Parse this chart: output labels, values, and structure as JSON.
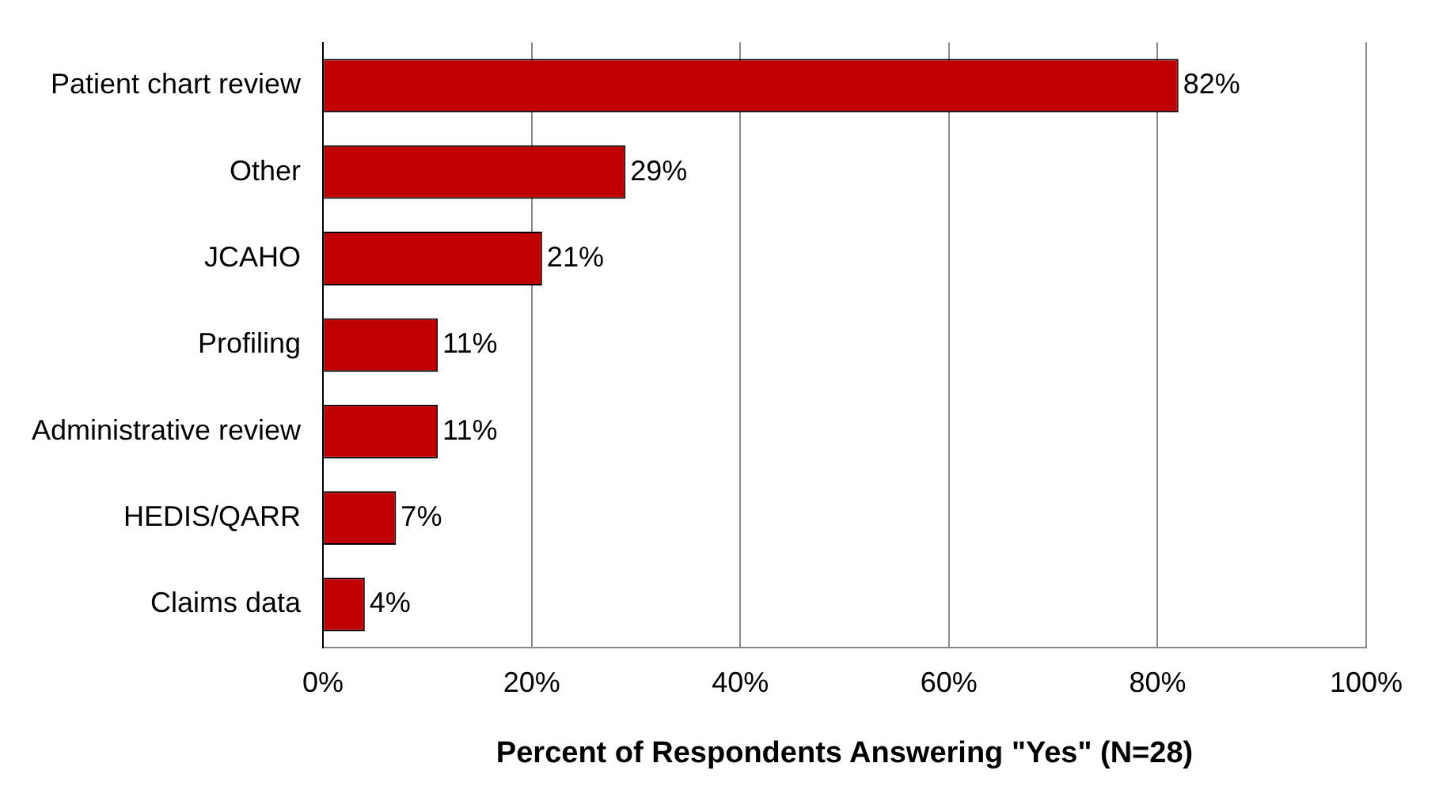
{
  "chart_data": {
    "type": "bar",
    "orientation": "horizontal",
    "xlabel": "Percent of Respondents Answering \"Yes\" (N=28)",
    "categories": [
      "Patient chart review",
      "Other",
      "JCAHO",
      "Profiling",
      "Administrative review",
      "HEDIS/QARR",
      "Claims data"
    ],
    "values": [
      82,
      29,
      21,
      11,
      11,
      7,
      4
    ],
    "value_labels": [
      "82%",
      "29%",
      "21%",
      "11%",
      "11%",
      "7%",
      "4%"
    ],
    "color": "#c00000",
    "xlim": [
      0,
      100
    ],
    "xticks": [
      {
        "value": 0,
        "label": "0%"
      },
      {
        "value": 20,
        "label": "20%"
      },
      {
        "value": 40,
        "label": "40%"
      },
      {
        "value": 60,
        "label": "60%"
      },
      {
        "value": 80,
        "label": "80%"
      },
      {
        "value": 100,
        "label": "100%"
      }
    ],
    "grid": "x",
    "legend": false
  }
}
